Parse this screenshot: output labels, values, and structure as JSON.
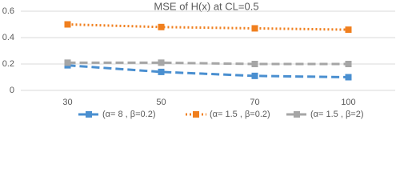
{
  "chart_data": {
    "type": "line",
    "title": "MSE of  H(x) at CL=0.5",
    "categories": [
      "30",
      "50",
      "70",
      "100"
    ],
    "series": [
      {
        "name": "(α= 8 , β=0.2)",
        "color": "#4a8fd0",
        "style": "dashed",
        "values": [
          0.19,
          0.14,
          0.11,
          0.1
        ]
      },
      {
        "name": "(α= 1.5 , β=0.2)",
        "color": "#f07f1e",
        "style": "dotted",
        "values": [
          0.5,
          0.48,
          0.47,
          0.46
        ]
      },
      {
        "name": "(α= 1.5 , β=2)",
        "color": "#a6a6a6",
        "style": "dashed",
        "values": [
          0.21,
          0.21,
          0.2,
          0.2
        ]
      }
    ],
    "ylim": [
      0,
      0.6
    ],
    "yticks": [
      0,
      0.2,
      0.4,
      0.6
    ],
    "grid": true,
    "legend": "bottom"
  }
}
